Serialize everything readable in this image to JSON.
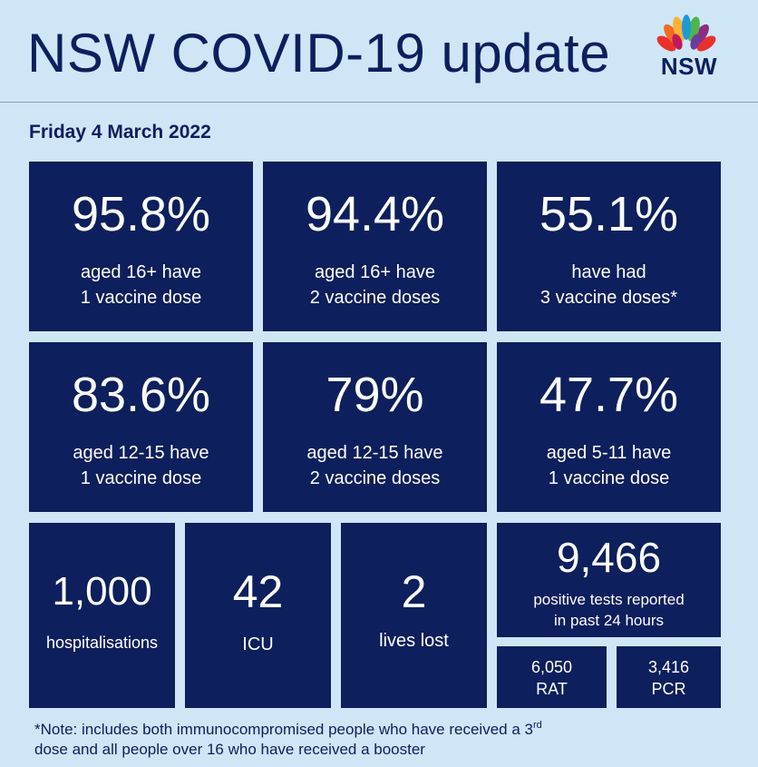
{
  "header": {
    "title": "NSW COVID-19 update",
    "logo_text": "NSW"
  },
  "date": "Friday 4 March 2022",
  "vaccine_stats": [
    {
      "value": "95.8%",
      "line1": "aged 16+ have",
      "line2": "1 vaccine dose"
    },
    {
      "value": "94.4%",
      "line1": "aged 16+ have",
      "line2": "2 vaccine doses"
    },
    {
      "value": "55.1%",
      "line1": "have had",
      "line2": "3 vaccine doses*"
    },
    {
      "value": "83.6%",
      "line1": "aged 12-15 have",
      "line2": "1 vaccine dose"
    },
    {
      "value": "79%",
      "line1": "aged 12-15 have",
      "line2": "2 vaccine doses"
    },
    {
      "value": "47.7%",
      "line1": "aged 5-11 have",
      "line2": "1 vaccine dose"
    }
  ],
  "case_stats": {
    "hospitalisations": {
      "value": "1,000",
      "label": "hospitalisations"
    },
    "icu": {
      "value": "42",
      "label": "ICU"
    },
    "lives_lost": {
      "value": "2",
      "label": "lives lost"
    },
    "positive_tests": {
      "value": "9,466",
      "line1": "positive tests reported",
      "line2": "in past 24 hours"
    },
    "rat": {
      "value": "6,050",
      "label": "RAT"
    },
    "pcr": {
      "value": "3,416",
      "label": "PCR"
    }
  },
  "note": {
    "part1": "*Note: includes both immunocompromised  people who have received a 3",
    "sup": "rd",
    "part2": "dose and all people over 16 who have received a booster"
  },
  "colors": {
    "background": "#cfe6f7",
    "tile": "#0d1f5c",
    "text_dark": "#0c1f5e",
    "tile_text": "#ffffff"
  }
}
